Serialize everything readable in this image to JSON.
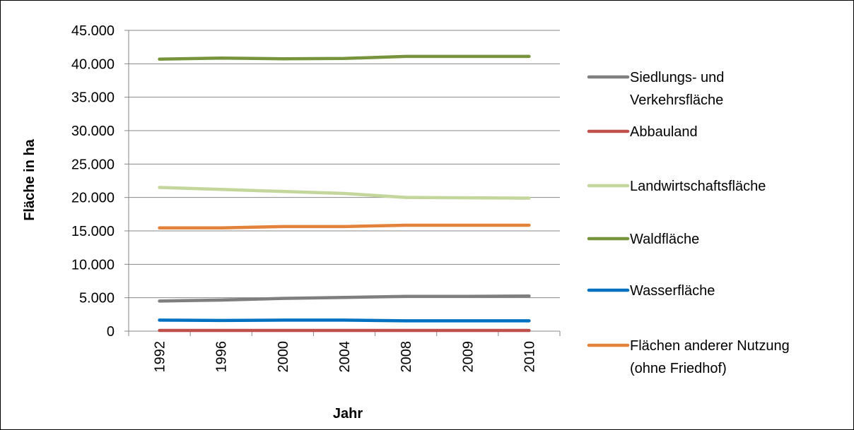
{
  "chart_data": {
    "type": "line",
    "title": "",
    "xlabel": "Jahr",
    "ylabel": "Fläche in ha",
    "categories": [
      "1992",
      "1996",
      "2000",
      "2004",
      "2008",
      "2009",
      "2010"
    ],
    "ylim": [
      0,
      45000
    ],
    "yticks": [
      0,
      5000,
      10000,
      15000,
      20000,
      25000,
      30000,
      35000,
      40000,
      45000
    ],
    "ytick_labels": [
      "0",
      "5.000",
      "10.000",
      "15.000",
      "20.000",
      "25.000",
      "30.000",
      "35.000",
      "40.000",
      "45.000"
    ],
    "grid": "horizontal",
    "legend_position": "right",
    "series": [
      {
        "name": "Siedlungs- und Verkehrsfläche",
        "label_lines": [
          "Siedlungs- und",
          "Verkehrsfläche"
        ],
        "color": "#7f7f7f",
        "values": [
          4500,
          4650,
          4900,
          5050,
          5200,
          5200,
          5250
        ]
      },
      {
        "name": "Abbauland",
        "label_lines": [
          "Abbauland"
        ],
        "color": "#c0504d",
        "values": [
          100,
          100,
          100,
          100,
          100,
          100,
          100
        ]
      },
      {
        "name": "Landwirtschaftsfläche",
        "label_lines": [
          "Landwirtschaftsfläche"
        ],
        "color": "#c3d69b",
        "values": [
          21500,
          21200,
          20900,
          20600,
          20000,
          19950,
          19900
        ]
      },
      {
        "name": "Waldfläche",
        "label_lines": [
          "Waldfläche"
        ],
        "color": "#77933c",
        "values": [
          40700,
          40850,
          40750,
          40800,
          41100,
          41100,
          41100
        ]
      },
      {
        "name": "Wasserfläche",
        "label_lines": [
          "Wasserfläche"
        ],
        "color": "#0070c0",
        "values": [
          1650,
          1600,
          1650,
          1650,
          1550,
          1550,
          1550
        ]
      },
      {
        "name": "Flächen anderer Nutzung (ohne Friedhof)",
        "label_lines": [
          "Flächen anderer Nutzung",
          "(ohne Friedhof)"
        ],
        "color": "#e3823a",
        "values": [
          15450,
          15450,
          15650,
          15650,
          15850,
          15850,
          15850
        ]
      }
    ]
  }
}
